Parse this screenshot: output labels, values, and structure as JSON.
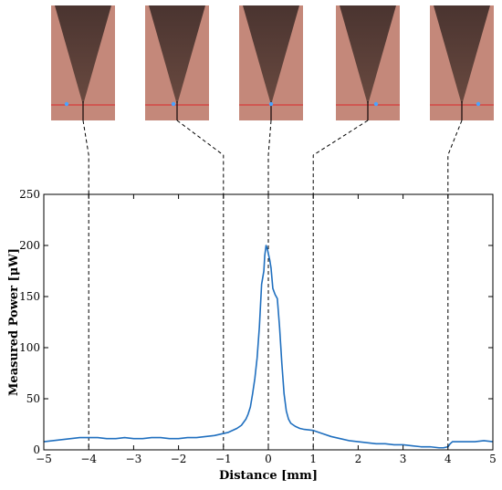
{
  "images": {
    "count": 5,
    "markers_x_mm": [
      -4,
      -1,
      0,
      1,
      4
    ]
  },
  "chart_data": {
    "type": "line",
    "title": "",
    "xlabel": "Distance [mm]",
    "ylabel": "Measured Power [μW]",
    "xlim": [
      -5,
      5
    ],
    "ylim": [
      0,
      250
    ],
    "xticks": [
      -5,
      -4,
      -3,
      -2,
      -1,
      0,
      1,
      2,
      3,
      4,
      5
    ],
    "yticks": [
      0,
      50,
      100,
      150,
      200,
      250
    ],
    "grid": false,
    "vertical_markers": [
      -4,
      -1,
      0,
      1,
      4
    ],
    "series": [
      {
        "color": "#1f6fbf",
        "x": [
          -5.0,
          -4.8,
          -4.6,
          -4.4,
          -4.2,
          -4.0,
          -3.8,
          -3.6,
          -3.4,
          -3.2,
          -3.0,
          -2.8,
          -2.6,
          -2.4,
          -2.2,
          -2.0,
          -1.8,
          -1.6,
          -1.4,
          -1.2,
          -1.0,
          -0.9,
          -0.8,
          -0.7,
          -0.6,
          -0.5,
          -0.45,
          -0.4,
          -0.35,
          -0.3,
          -0.25,
          -0.2,
          -0.15,
          -0.1,
          -0.08,
          -0.05,
          -0.02,
          0.0,
          0.03,
          0.06,
          0.1,
          0.15,
          0.2,
          0.25,
          0.3,
          0.35,
          0.4,
          0.45,
          0.5,
          0.6,
          0.7,
          0.8,
          1.0,
          1.2,
          1.4,
          1.6,
          1.8,
          2.0,
          2.2,
          2.4,
          2.6,
          2.8,
          3.0,
          3.2,
          3.4,
          3.6,
          3.8,
          3.9,
          4.0,
          4.05,
          4.1,
          4.2,
          4.4,
          4.6,
          4.8,
          5.0
        ],
        "y": [
          8,
          9,
          10,
          11,
          12,
          12,
          12,
          11,
          11,
          12,
          11,
          11,
          12,
          12,
          11,
          11,
          12,
          12,
          13,
          14,
          16,
          17,
          19,
          21,
          24,
          30,
          35,
          42,
          55,
          70,
          90,
          120,
          162,
          175,
          190,
          200,
          196,
          192,
          186,
          178,
          158,
          152,
          148,
          120,
          85,
          55,
          38,
          30,
          26,
          23,
          21,
          20,
          19,
          16,
          13,
          11,
          9,
          8,
          7,
          6,
          6,
          5,
          5,
          4,
          3,
          3,
          2,
          2,
          3,
          6,
          8,
          8,
          8,
          8,
          9,
          8
        ]
      }
    ]
  }
}
